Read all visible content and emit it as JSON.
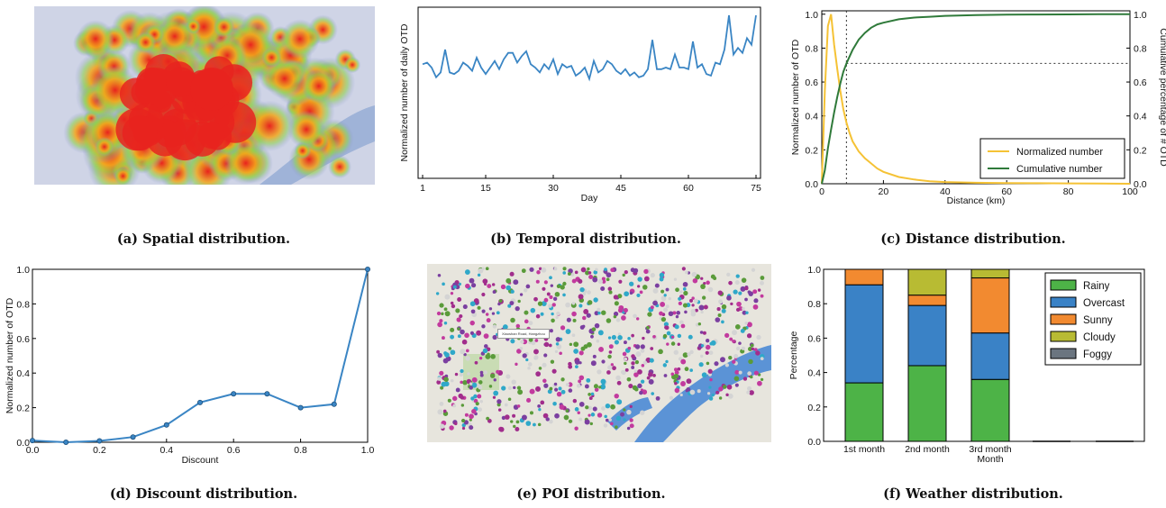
{
  "captions": {
    "a": "(a) Spatial distribution.",
    "b": "(b) Temporal distribution.",
    "c": "(c) Distance distribution.",
    "d": "(d) Discount distribution.",
    "e": "(e) POI distribution.",
    "f": "(f) Weather distribution."
  },
  "map_tooltip": "Xiaoshan Road, Hangzhou",
  "colors": {
    "line_blue": "#3a85c4",
    "normalized_yellow": "#f5c235",
    "cumulative_green": "#2f7a3a",
    "rainy": "#4db347",
    "overcast": "#3a82c6",
    "sunny": "#f28a30",
    "cloudy": "#b8bb33",
    "foggy": "#6b7580",
    "heat_red": "#e8231e",
    "river": "#5b93d6"
  },
  "chart_data": [
    {
      "id": "b",
      "type": "line",
      "title": "",
      "xlabel": "Day",
      "ylabel": "Normalized number of daily OTD",
      "xlim": [
        0,
        76
      ],
      "ylim": [
        0.0,
        1.05
      ],
      "xticks": [
        "1",
        "15",
        "30",
        "45",
        "60",
        "75"
      ],
      "xtick_values": [
        1,
        15,
        30,
        45,
        60,
        75
      ],
      "x": [
        1,
        2,
        3,
        4,
        5,
        6,
        7,
        8,
        9,
        10,
        11,
        12,
        13,
        14,
        15,
        16,
        17,
        18,
        19,
        20,
        21,
        22,
        23,
        24,
        25,
        26,
        27,
        28,
        29,
        30,
        31,
        32,
        33,
        34,
        35,
        36,
        37,
        38,
        39,
        40,
        41,
        42,
        43,
        44,
        45,
        46,
        47,
        48,
        49,
        50,
        51,
        52,
        53,
        54,
        55,
        56,
        57,
        58,
        59,
        60,
        61,
        62,
        63,
        64,
        65,
        66,
        67,
        68,
        69,
        70,
        71,
        72,
        73,
        74,
        75
      ],
      "values": [
        0.7,
        0.71,
        0.68,
        0.62,
        0.65,
        0.79,
        0.65,
        0.64,
        0.66,
        0.71,
        0.69,
        0.66,
        0.74,
        0.68,
        0.64,
        0.68,
        0.72,
        0.67,
        0.73,
        0.77,
        0.77,
        0.71,
        0.75,
        0.78,
        0.7,
        0.68,
        0.65,
        0.7,
        0.67,
        0.73,
        0.64,
        0.7,
        0.68,
        0.69,
        0.63,
        0.65,
        0.68,
        0.61,
        0.72,
        0.65,
        0.67,
        0.72,
        0.7,
        0.66,
        0.64,
        0.67,
        0.63,
        0.65,
        0.62,
        0.63,
        0.67,
        0.85,
        0.67,
        0.67,
        0.68,
        0.67,
        0.76,
        0.68,
        0.68,
        0.67,
        0.84,
        0.68,
        0.7,
        0.64,
        0.63,
        0.71,
        0.7,
        0.79,
        1.0,
        0.76,
        0.8,
        0.77,
        0.86,
        0.82,
        1.0
      ]
    },
    {
      "id": "c",
      "type": "line",
      "title": "",
      "xlabel": "Distance (km)",
      "ylabel": "Normalized number of OTD",
      "y2label": "Cumulative percentage of # OTD",
      "xlim": [
        0,
        100
      ],
      "ylim": [
        0.0,
        1.02
      ],
      "y2lim": [
        0.0,
        1.02
      ],
      "xticks": [
        "0",
        "20",
        "40",
        "60",
        "80",
        "100"
      ],
      "yticks": [
        "0.0",
        "0.2",
        "0.4",
        "0.6",
        "0.8",
        "1.0"
      ],
      "y2ticks": [
        "0.0",
        "0.2",
        "0.4",
        "0.6",
        "0.8",
        "1.0"
      ],
      "legend_position": "bottom-right",
      "reference_lines": {
        "vertical_x": 8,
        "horizontal_y": 0.71
      },
      "series": [
        {
          "name": "Normalized number",
          "x": [
            0,
            1,
            2,
            3,
            4,
            5,
            6,
            7,
            8,
            9,
            10,
            12,
            14,
            16,
            18,
            20,
            25,
            30,
            35,
            40,
            50,
            60,
            70,
            80,
            90,
            100
          ],
          "values": [
            0.0,
            0.55,
            0.93,
            1.0,
            0.82,
            0.68,
            0.55,
            0.44,
            0.36,
            0.3,
            0.25,
            0.19,
            0.15,
            0.12,
            0.09,
            0.07,
            0.04,
            0.025,
            0.015,
            0.01,
            0.006,
            0.004,
            0.003,
            0.002,
            0.001,
            0.0
          ]
        },
        {
          "name": "Cumulative number",
          "x": [
            0,
            1,
            2,
            3,
            4,
            5,
            6,
            7,
            8,
            9,
            10,
            12,
            14,
            16,
            18,
            20,
            25,
            30,
            35,
            40,
            50,
            60,
            70,
            80,
            90,
            100
          ],
          "values": [
            0.0,
            0.08,
            0.21,
            0.32,
            0.42,
            0.51,
            0.59,
            0.66,
            0.71,
            0.75,
            0.79,
            0.85,
            0.89,
            0.92,
            0.94,
            0.95,
            0.97,
            0.98,
            0.985,
            0.99,
            0.995,
            0.997,
            0.998,
            0.999,
            1.0,
            1.0
          ]
        }
      ]
    },
    {
      "id": "d",
      "type": "line",
      "title": "",
      "xlabel": "Discount",
      "ylabel": "Normalized number of OTD",
      "xlim": [
        0.0,
        1.0
      ],
      "ylim": [
        0.0,
        1.0
      ],
      "xticks": [
        "0.0",
        "0.2",
        "0.4",
        "0.6",
        "0.8",
        "1.0"
      ],
      "yticks": [
        "0.0",
        "0.2",
        "0.4",
        "0.6",
        "0.8",
        "1.0"
      ],
      "markers": true,
      "x": [
        0.0,
        0.1,
        0.2,
        0.3,
        0.4,
        0.5,
        0.6,
        0.7,
        0.8,
        0.9,
        1.0
      ],
      "values": [
        0.01,
        0.0,
        0.008,
        0.03,
        0.1,
        0.23,
        0.28,
        0.28,
        0.2,
        0.22,
        1.0
      ]
    },
    {
      "id": "f",
      "type": "bar",
      "stacked": true,
      "title": "",
      "xlabel": "Month",
      "ylabel": "Percentage",
      "ylim": [
        0.0,
        1.0
      ],
      "yticks": [
        "0.0",
        "0.2",
        "0.4",
        "0.6",
        "0.8",
        "1.0"
      ],
      "categories": [
        "1st month",
        "2nd month",
        "3rd month",
        "",
        ""
      ],
      "legend_position": "top-right",
      "series": [
        {
          "name": "Rainy",
          "values": [
            0.34,
            0.44,
            0.36,
            0.0,
            0.0
          ]
        },
        {
          "name": "Overcast",
          "values": [
            0.57,
            0.35,
            0.27,
            0.0,
            0.0
          ]
        },
        {
          "name": "Sunny",
          "values": [
            0.09,
            0.06,
            0.32,
            0.0,
            0.0
          ]
        },
        {
          "name": "Cloudy",
          "values": [
            0.0,
            0.15,
            0.05,
            0.0,
            0.0
          ]
        },
        {
          "name": "Foggy",
          "values": [
            0.0,
            0.0,
            0.0,
            0.0,
            0.0
          ]
        }
      ]
    }
  ]
}
